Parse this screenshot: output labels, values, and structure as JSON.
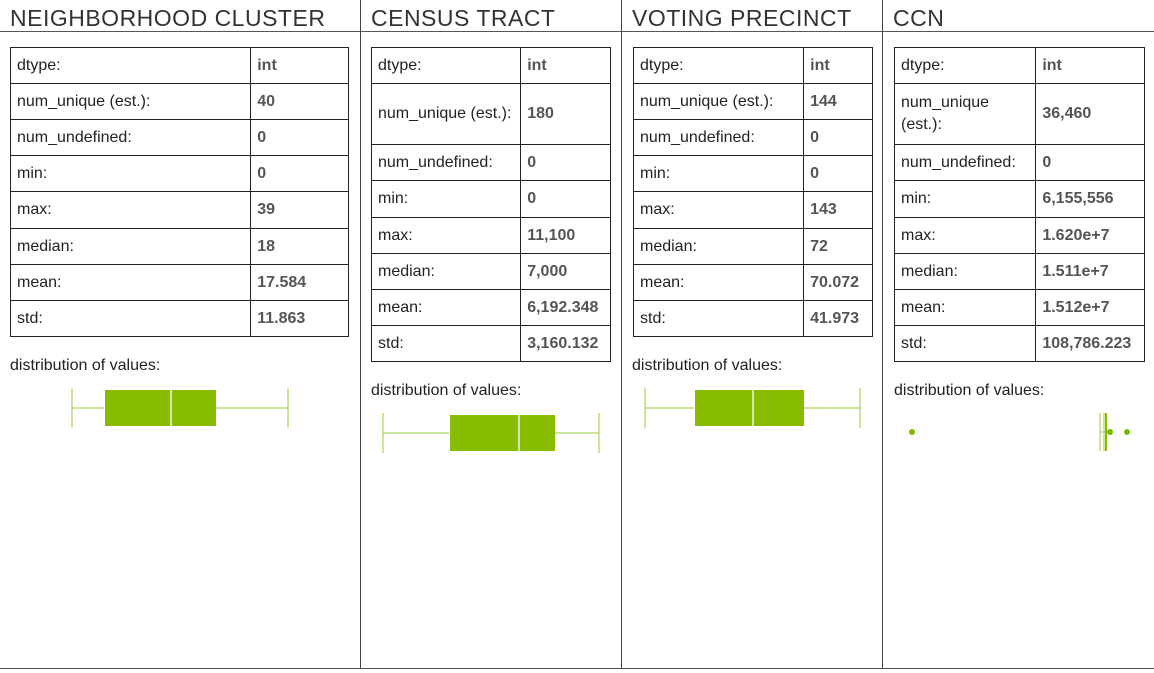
{
  "stat_labels": {
    "dtype": "dtype:",
    "num_unique": "num_unique (est.):",
    "num_undefined": "num_undefined:",
    "min": "min:",
    "max": "max:",
    "median": "median:",
    "mean": "mean:",
    "std": "std:"
  },
  "distribution_label": "distribution of values:",
  "colors": {
    "box_fill": "#88bc00",
    "whisker": "#a6d45a",
    "point": "#7ab800"
  },
  "columns": [
    {
      "title": "NEIGHBORHOOD CLUSTER",
      "stats": {
        "dtype": "int",
        "num_unique": "40",
        "num_undefined": "0",
        "min": "0",
        "max": "39",
        "median": "18",
        "mean": "17.584",
        "std": "11.863"
      }
    },
    {
      "title": "CENSUS TRACT",
      "stats": {
        "dtype": "int",
        "num_unique": "180",
        "num_undefined": "0",
        "min": "0",
        "max": "11,100",
        "median": "7,000",
        "mean": "6,192.348",
        "std": "3,160.132"
      }
    },
    {
      "title": "VOTING PRECINCT",
      "stats": {
        "dtype": "int",
        "num_unique": "144",
        "num_undefined": "0",
        "min": "0",
        "max": "143",
        "median": "72",
        "mean": "70.072",
        "std": "41.973"
      }
    },
    {
      "title": "CCN",
      "stats": {
        "dtype": "int",
        "num_unique": "36,460",
        "num_undefined": "0",
        "min": "6,155,556",
        "max": "1.620e+7",
        "median": "1.511e+7",
        "mean": "1.512e+7",
        "std": "108,786.223"
      }
    }
  ]
}
